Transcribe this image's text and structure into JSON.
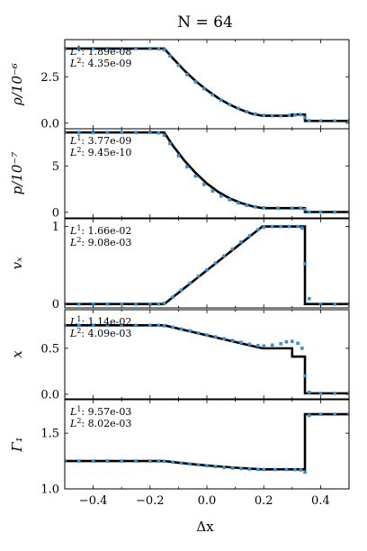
{
  "title": "N = 64",
  "chart_data": {
    "type": "line",
    "title": "N = 64",
    "xlabel": "Δx",
    "xlim": [
      -0.5,
      0.5
    ],
    "xticks": [
      -0.4,
      -0.2,
      0.0,
      0.2,
      0.4
    ],
    "xtick_labels": [
      "−0.4",
      "−0.2",
      "0.0",
      "0.2",
      "0.4"
    ],
    "series_styles": {
      "reference": {
        "style": "solid line",
        "color": "#000000"
      },
      "simulation": {
        "style": "square markers",
        "color": "#3a8fd0"
      }
    },
    "panels": [
      {
        "key": "rho",
        "ylabel": "ρ/10⁻⁶",
        "ylim": [
          -0.3,
          4.5
        ],
        "yticks": [
          0.0,
          2.5
        ],
        "ytick_labels": [
          "0.0",
          "2.5"
        ],
        "errors": {
          "L1": "1.89e-08",
          "L2": "4.35e-09"
        },
        "reference": {
          "x": [
            -0.5,
            -0.15,
            -0.12,
            -0.08,
            -0.04,
            0.0,
            0.04,
            0.08,
            0.12,
            0.16,
            0.195,
            0.3,
            0.3,
            0.345,
            0.345,
            0.5
          ],
          "y": [
            4.02,
            4.02,
            3.5,
            2.85,
            2.27,
            1.78,
            1.35,
            1.0,
            0.72,
            0.5,
            0.4,
            0.4,
            0.47,
            0.47,
            0.12,
            0.12
          ]
        },
        "simulation": {
          "x": [
            -0.5,
            -0.45,
            -0.4,
            -0.35,
            -0.3,
            -0.25,
            -0.2,
            -0.17,
            -0.15,
            -0.13,
            -0.1,
            -0.07,
            -0.04,
            -0.01,
            0.02,
            0.05,
            0.08,
            0.11,
            0.14,
            0.17,
            0.2,
            0.23,
            0.26,
            0.29,
            0.31,
            0.33,
            0.345,
            0.36,
            0.4,
            0.45,
            0.5
          ],
          "y": [
            4.02,
            4.02,
            4.02,
            4.02,
            4.02,
            4.02,
            4.02,
            4.01,
            3.95,
            3.62,
            3.12,
            2.62,
            2.22,
            1.86,
            1.52,
            1.24,
            1.0,
            0.8,
            0.62,
            0.5,
            0.42,
            0.4,
            0.4,
            0.42,
            0.44,
            0.46,
            0.3,
            0.13,
            0.12,
            0.12,
            0.12
          ]
        }
      },
      {
        "key": "p",
        "ylabel": "p/10⁻⁷",
        "ylim": [
          -0.6,
          9.0
        ],
        "yticks": [
          0,
          5
        ],
        "ytick_labels": [
          "0",
          "5"
        ],
        "errors": {
          "L1": "3.77e-09",
          "L2": "9.45e-10"
        },
        "reference": {
          "x": [
            -0.5,
            -0.15,
            -0.12,
            -0.08,
            -0.04,
            0.0,
            0.04,
            0.08,
            0.12,
            0.16,
            0.195,
            0.345,
            0.345,
            0.5
          ],
          "y": [
            8.6,
            8.6,
            7.2,
            5.6,
            4.25,
            3.1,
            2.2,
            1.5,
            1.0,
            0.65,
            0.45,
            0.45,
            0.03,
            0.03
          ]
        },
        "simulation": {
          "x": [
            -0.5,
            -0.45,
            -0.4,
            -0.35,
            -0.3,
            -0.25,
            -0.2,
            -0.17,
            -0.15,
            -0.13,
            -0.1,
            -0.07,
            -0.04,
            -0.01,
            0.02,
            0.05,
            0.08,
            0.11,
            0.14,
            0.17,
            0.2,
            0.25,
            0.3,
            0.33,
            0.345,
            0.36,
            0.4,
            0.45,
            0.5
          ],
          "y": [
            8.6,
            8.6,
            8.6,
            8.6,
            8.6,
            8.6,
            8.6,
            8.55,
            8.3,
            7.4,
            6.1,
            4.9,
            3.9,
            3.0,
            2.3,
            1.75,
            1.35,
            1.0,
            0.75,
            0.58,
            0.48,
            0.45,
            0.45,
            0.45,
            0.3,
            0.04,
            0.03,
            0.03,
            0.03
          ]
        }
      },
      {
        "key": "vx",
        "ylabel": "vₓ",
        "ylim": [
          -0.05,
          1.1
        ],
        "yticks": [
          0,
          1
        ],
        "ytick_labels": [
          "0",
          "1"
        ],
        "errors": {
          "L1": "1.66e-02",
          "L2": "9.08e-03"
        },
        "reference": {
          "x": [
            -0.5,
            -0.15,
            0.195,
            0.345,
            0.345,
            0.5
          ],
          "y": [
            0.0,
            0.0,
            1.0,
            1.0,
            0.0,
            0.0
          ]
        },
        "simulation": {
          "x": [
            -0.5,
            -0.45,
            -0.4,
            -0.35,
            -0.3,
            -0.25,
            -0.2,
            -0.17,
            -0.15,
            -0.12,
            -0.09,
            -0.06,
            -0.03,
            0.0,
            0.03,
            0.06,
            0.09,
            0.12,
            0.15,
            0.18,
            0.2,
            0.23,
            0.26,
            0.29,
            0.32,
            0.335,
            0.345,
            0.36,
            0.4,
            0.45,
            0.5
          ],
          "y": [
            0.0,
            0.0,
            0.0,
            0.0,
            0.0,
            0.0,
            0.0,
            0.0,
            0.01,
            0.09,
            0.18,
            0.27,
            0.36,
            0.44,
            0.53,
            0.62,
            0.71,
            0.8,
            0.88,
            0.96,
            0.99,
            1.0,
            1.0,
            1.0,
            1.0,
            0.98,
            0.52,
            0.07,
            0.0,
            0.0,
            0.0
          ]
        }
      },
      {
        "key": "x",
        "ylabel": "x",
        "ylim": [
          -0.05,
          0.92
        ],
        "yticks": [
          0.0,
          0.5
        ],
        "ytick_labels": [
          "0.0",
          "0.5"
        ],
        "errors": {
          "L1": "1.14e-02",
          "L2": "4.09e-03"
        },
        "reference": {
          "x": [
            -0.5,
            -0.15,
            0.195,
            0.3,
            0.3,
            0.345,
            0.345,
            0.5
          ],
          "y": [
            0.75,
            0.75,
            0.5,
            0.5,
            0.41,
            0.41,
            0.01,
            0.01
          ]
        },
        "simulation": {
          "x": [
            -0.5,
            -0.45,
            -0.4,
            -0.35,
            -0.3,
            -0.25,
            -0.2,
            -0.17,
            -0.15,
            -0.12,
            -0.09,
            -0.06,
            -0.03,
            0.0,
            0.03,
            0.06,
            0.09,
            0.12,
            0.15,
            0.18,
            0.2,
            0.23,
            0.26,
            0.28,
            0.3,
            0.32,
            0.335,
            0.345,
            0.36,
            0.4,
            0.45,
            0.5
          ],
          "y": [
            0.75,
            0.75,
            0.75,
            0.75,
            0.75,
            0.75,
            0.75,
            0.75,
            0.745,
            0.73,
            0.71,
            0.69,
            0.665,
            0.645,
            0.625,
            0.605,
            0.585,
            0.565,
            0.545,
            0.53,
            0.525,
            0.535,
            0.55,
            0.57,
            0.575,
            0.555,
            0.5,
            0.2,
            0.02,
            0.01,
            0.01,
            0.01
          ]
        }
      },
      {
        "key": "gamma",
        "ylabel": "Γ₁",
        "ylim": [
          1.0,
          1.8
        ],
        "yticks": [
          1.0,
          1.5
        ],
        "ytick_labels": [
          "1.0",
          "1.5"
        ],
        "errors": {
          "L1": "9.57e-03",
          "L2": "8.02e-03"
        },
        "reference": {
          "x": [
            -0.5,
            -0.15,
            -0.1,
            -0.05,
            0.0,
            0.05,
            0.1,
            0.15,
            0.195,
            0.345,
            0.345,
            0.5
          ],
          "y": [
            1.25,
            1.25,
            1.235,
            1.222,
            1.21,
            1.2,
            1.19,
            1.182,
            1.175,
            1.175,
            1.67,
            1.67
          ]
        },
        "simulation": {
          "x": [
            -0.5,
            -0.45,
            -0.4,
            -0.35,
            -0.3,
            -0.25,
            -0.2,
            -0.17,
            -0.15,
            -0.12,
            -0.09,
            -0.06,
            -0.03,
            0.0,
            0.03,
            0.06,
            0.09,
            0.12,
            0.15,
            0.18,
            0.2,
            0.24,
            0.28,
            0.31,
            0.33,
            0.345,
            0.36,
            0.4,
            0.45,
            0.5
          ],
          "y": [
            1.25,
            1.25,
            1.25,
            1.25,
            1.25,
            1.25,
            1.25,
            1.25,
            1.248,
            1.24,
            1.232,
            1.224,
            1.216,
            1.208,
            1.2,
            1.193,
            1.187,
            1.182,
            1.178,
            1.175,
            1.174,
            1.174,
            1.174,
            1.173,
            1.17,
            1.15,
            1.66,
            1.67,
            1.67,
            1.67
          ]
        }
      }
    ]
  }
}
